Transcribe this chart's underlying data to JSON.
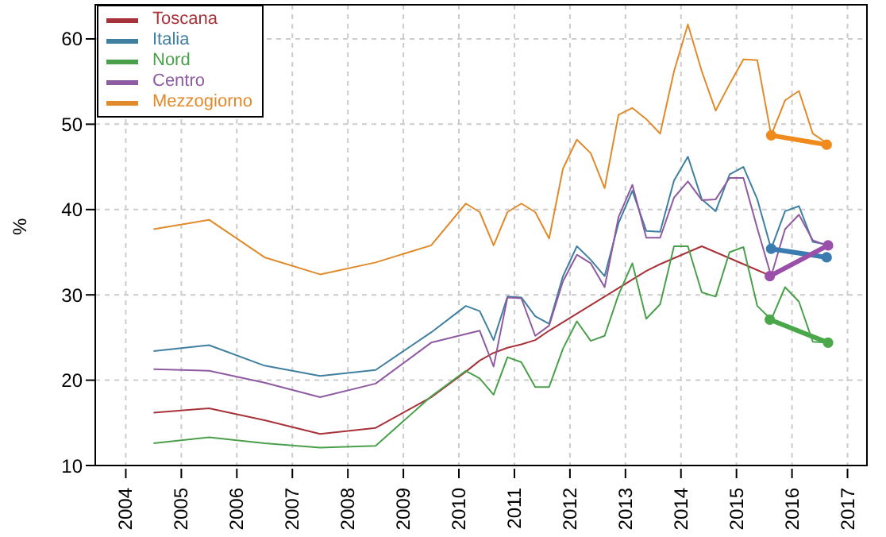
{
  "chart_data": {
    "type": "line",
    "ylabel": "%",
    "xlim": [
      2003.45,
      2017.35
    ],
    "ylim": [
      10,
      64
    ],
    "xticks": [
      2004,
      2005,
      2006,
      2007,
      2008,
      2009,
      2010,
      2011,
      2012,
      2013,
      2014,
      2015,
      2016,
      2017
    ],
    "yticks": [
      10,
      20,
      30,
      40,
      50,
      60
    ],
    "grid": true,
    "legend": "top left",
    "line_style": "solid",
    "x": [
      2004.5,
      2005.5,
      2006.5,
      2007.5,
      2008.5,
      2009.5,
      2010.125,
      2010.375,
      2010.625,
      2010.875,
      2011.125,
      2011.375,
      2011.625,
      2011.875,
      2012.125,
      2012.375,
      2012.625,
      2012.875,
      2013.125,
      2013.375,
      2013.625,
      2013.875,
      2014.125,
      2014.375,
      2014.625,
      2014.875,
      2015.125,
      2015.375,
      2015.625,
      2015.875,
      2016.125,
      2016.375,
      2016.625
    ],
    "series": [
      {
        "name": "Toscana",
        "color": "#a8323a",
        "values": [
          16.2,
          16.7,
          15.3,
          13.7,
          14.4,
          18.0,
          21.0,
          22.3,
          23.2,
          23.8,
          24.2,
          24.7,
          25.8,
          26.8,
          27.8,
          28.8,
          29.8,
          30.8,
          31.8,
          32.8,
          33.6,
          34.3,
          35.0,
          35.7,
          35.0,
          34.3,
          33.6,
          32.9,
          32.2,
          null,
          null,
          null,
          null
        ]
      },
      {
        "name": "Italia",
        "color": "#3f7fa0",
        "values": [
          23.4,
          24.1,
          21.7,
          20.5,
          21.2,
          25.6,
          28.7,
          28.1,
          24.7,
          29.8,
          29.7,
          27.5,
          26.6,
          32.2,
          35.7,
          34.1,
          32.2,
          38.4,
          42.2,
          37.5,
          37.4,
          43.4,
          46.2,
          41.2,
          39.8,
          44.1,
          45.0,
          41.2,
          35.4,
          39.8,
          40.4,
          36.2,
          35.9
        ]
      },
      {
        "name": "Nord",
        "color": "#4aa04a",
        "values": [
          12.6,
          13.3,
          12.6,
          12.1,
          12.3,
          18.1,
          21.1,
          20.2,
          18.3,
          22.7,
          22.1,
          19.2,
          19.2,
          23.7,
          26.9,
          24.6,
          25.2,
          30.0,
          33.7,
          27.2,
          28.9,
          35.7,
          35.7,
          30.3,
          29.8,
          35.0,
          35.6,
          28.7,
          27.1,
          30.9,
          29.2,
          24.5,
          24.4
        ]
      },
      {
        "name": "Centro",
        "color": "#8e5aa0",
        "values": [
          21.3,
          21.1,
          19.7,
          18.0,
          19.6,
          24.4,
          25.4,
          25.8,
          21.6,
          29.7,
          29.6,
          25.2,
          26.4,
          31.6,
          34.7,
          33.7,
          30.9,
          39.1,
          42.9,
          36.7,
          36.7,
          41.4,
          43.3,
          41.1,
          41.2,
          43.7,
          43.7,
          37.8,
          32.2,
          37.7,
          39.4,
          36.4,
          35.8
        ]
      },
      {
        "name": "Mezzogiorno",
        "color": "#e08a2a",
        "values": [
          37.7,
          38.8,
          34.4,
          32.4,
          33.8,
          35.8,
          40.7,
          39.7,
          35.8,
          39.7,
          40.7,
          39.7,
          36.6,
          44.8,
          48.2,
          46.6,
          42.5,
          51.1,
          51.9,
          50.6,
          48.9,
          56.2,
          61.7,
          56.2,
          51.6,
          54.7,
          57.6,
          57.5,
          48.7,
          52.8,
          53.9,
          48.9,
          47.8
        ]
      },
      {
        "color": "#3a7bb0",
        "marker": "circle",
        "x": [
          2015.625,
          2016.625
        ],
        "values": [
          35.4,
          34.4
        ]
      },
      {
        "color": "#4aa84a",
        "marker": "circle",
        "x": [
          2015.6,
          2016.65
        ],
        "values": [
          27.1,
          24.4
        ]
      },
      {
        "color": "#9a4fa8",
        "marker": "circle",
        "x": [
          2015.6,
          2016.65
        ],
        "values": [
          32.2,
          35.8
        ]
      },
      {
        "color": "#f08a1c",
        "marker": "circle",
        "x": [
          2015.625,
          2016.625
        ],
        "values": [
          48.7,
          47.6
        ]
      }
    ]
  }
}
